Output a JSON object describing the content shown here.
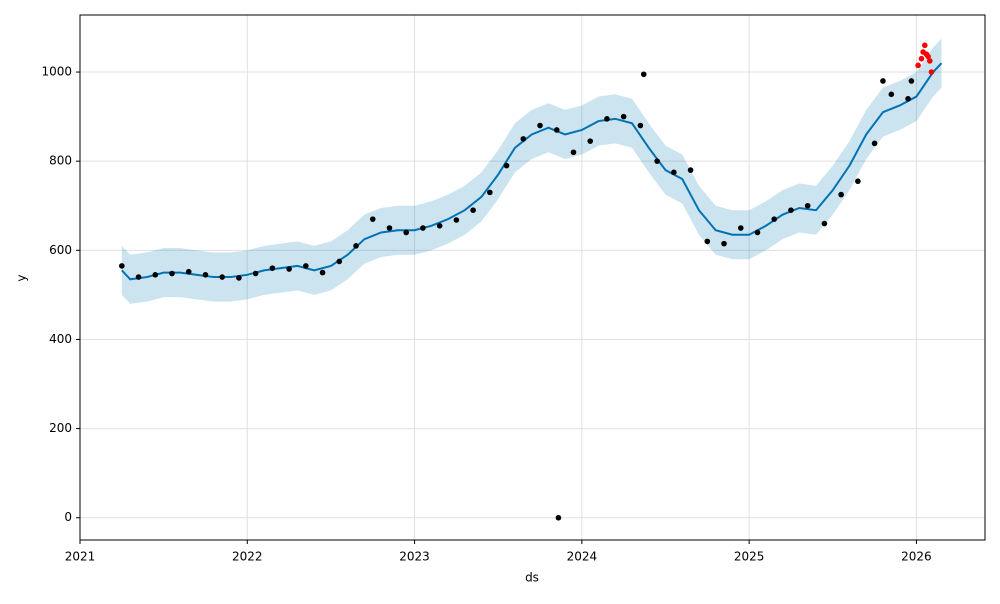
{
  "chart_data": {
    "type": "forecast",
    "x_label": "ds",
    "y_label": "y",
    "xlim": [
      2021,
      2026.41
    ],
    "ylim": [
      -50,
      1128
    ],
    "xticks": [
      2021,
      2022,
      2023,
      2024,
      2025,
      2026
    ],
    "yticks": [
      0,
      200,
      400,
      600,
      800,
      1000
    ],
    "grid": true,
    "series": [
      {
        "style": "line",
        "color": "#0072B2",
        "band_color": "#0072B2",
        "x": [
          2021.25,
          2021.3,
          2021.4,
          2021.5,
          2021.6,
          2021.7,
          2021.8,
          2021.9,
          2022.0,
          2022.1,
          2022.2,
          2022.3,
          2022.4,
          2022.5,
          2022.6,
          2022.7,
          2022.8,
          2022.9,
          2023.0,
          2023.1,
          2023.2,
          2023.3,
          2023.4,
          2023.5,
          2023.6,
          2023.7,
          2023.8,
          2023.9,
          2024.0,
          2024.1,
          2024.2,
          2024.3,
          2024.4,
          2024.5,
          2024.6,
          2024.7,
          2024.8,
          2024.9,
          2025.0,
          2025.1,
          2025.2,
          2025.3,
          2025.4,
          2025.5,
          2025.6,
          2025.7,
          2025.8,
          2025.9,
          2026.0,
          2026.1,
          2026.15
        ],
        "values": [
          555,
          535,
          540,
          550,
          550,
          545,
          540,
          540,
          545,
          555,
          560,
          565,
          555,
          565,
          590,
          625,
          640,
          645,
          645,
          655,
          670,
          690,
          720,
          770,
          830,
          860,
          875,
          860,
          870,
          890,
          895,
          885,
          830,
          780,
          760,
          690,
          645,
          635,
          635,
          655,
          680,
          695,
          690,
          735,
          790,
          860,
          910,
          925,
          945,
          1000,
          1020
        ],
        "lower": [
          500,
          480,
          485,
          495,
          495,
          490,
          485,
          485,
          490,
          500,
          505,
          510,
          500,
          510,
          535,
          570,
          585,
          590,
          590,
          600,
          615,
          635,
          665,
          715,
          775,
          805,
          820,
          805,
          815,
          835,
          840,
          830,
          775,
          725,
          705,
          635,
          590,
          580,
          580,
          600,
          625,
          640,
          635,
          680,
          735,
          805,
          855,
          870,
          890,
          945,
          965
        ],
        "upper": [
          610,
          590,
          595,
          605,
          605,
          600,
          595,
          595,
          600,
          610,
          615,
          620,
          610,
          620,
          645,
          680,
          695,
          700,
          700,
          710,
          725,
          745,
          775,
          825,
          885,
          915,
          930,
          915,
          925,
          945,
          950,
          940,
          885,
          835,
          815,
          745,
          700,
          690,
          690,
          710,
          735,
          750,
          745,
          790,
          845,
          915,
          965,
          980,
          1000,
          1055,
          1075
        ]
      },
      {
        "style": "dots",
        "color": "#000000",
        "x": [
          2021.25,
          2021.35,
          2021.45,
          2021.55,
          2021.65,
          2021.75,
          2021.85,
          2021.95,
          2022.05,
          2022.15,
          2022.25,
          2022.35,
          2022.45,
          2022.55,
          2022.65,
          2022.75,
          2022.85,
          2022.95,
          2023.05,
          2023.15,
          2023.25,
          2023.35,
          2023.45,
          2023.55,
          2023.65,
          2023.75,
          2023.85,
          2023.95,
          2024.05,
          2024.15,
          2024.25,
          2024.35,
          2024.45,
          2024.55,
          2024.65,
          2024.75,
          2024.85,
          2024.95,
          2025.05,
          2025.15,
          2025.25,
          2025.35,
          2025.45,
          2025.55,
          2025.65,
          2025.75,
          2025.85,
          2025.95,
          2023.86,
          2024.37,
          2025.8,
          2025.97
        ],
        "values": [
          565,
          540,
          545,
          548,
          552,
          545,
          540,
          538,
          548,
          560,
          558,
          565,
          550,
          575,
          610,
          670,
          650,
          640,
          650,
          655,
          668,
          690,
          730,
          790,
          850,
          880,
          870,
          820,
          845,
          895,
          900,
          880,
          800,
          775,
          780,
          620,
          615,
          650,
          640,
          670,
          690,
          700,
          660,
          725,
          755,
          840,
          950,
          940,
          0,
          995,
          980,
          980
        ]
      },
      {
        "style": "dots",
        "color": "#ff0000",
        "x": [
          2026.01,
          2026.03,
          2026.04,
          2026.05,
          2026.06,
          2026.07,
          2026.08,
          2026.09
        ],
        "values": [
          1015,
          1030,
          1045,
          1060,
          1040,
          1035,
          1025,
          1000
        ]
      }
    ]
  }
}
